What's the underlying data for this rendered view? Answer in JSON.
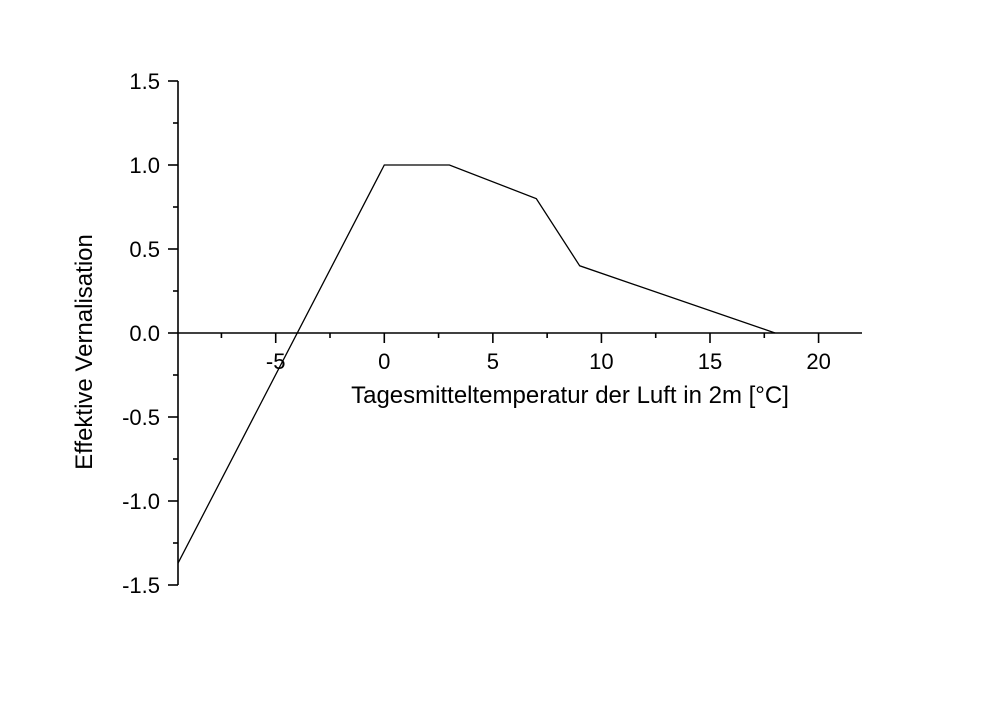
{
  "chart_data": {
    "type": "line",
    "title": "",
    "xlabel": "Tagesmitteltemperatur der Luft in 2m [°C]",
    "ylabel": "Effektive Vernalisation",
    "xlim": [
      -9.5,
      22
    ],
    "ylim": [
      -1.5,
      1.5
    ],
    "x_ticks": [
      -5,
      0,
      5,
      10,
      15,
      20
    ],
    "x_tick_labels": [
      "-5",
      "0",
      "5",
      "10",
      "15",
      "20"
    ],
    "y_ticks": [
      1.5,
      1.0,
      0.5,
      0.0,
      -0.5,
      -1.0,
      -1.5
    ],
    "y_tick_labels": [
      "1.5",
      "1.0",
      "0.5",
      "0.0",
      "-0.5",
      "-1.0",
      "-1.5"
    ],
    "grid": false,
    "series": [
      {
        "x": [
          -9.5,
          0,
          3,
          7,
          9,
          18
        ],
        "y": [
          -1.37,
          1.0,
          1.0,
          0.8,
          0.4,
          0.0
        ],
        "color": "#000000"
      }
    ]
  }
}
